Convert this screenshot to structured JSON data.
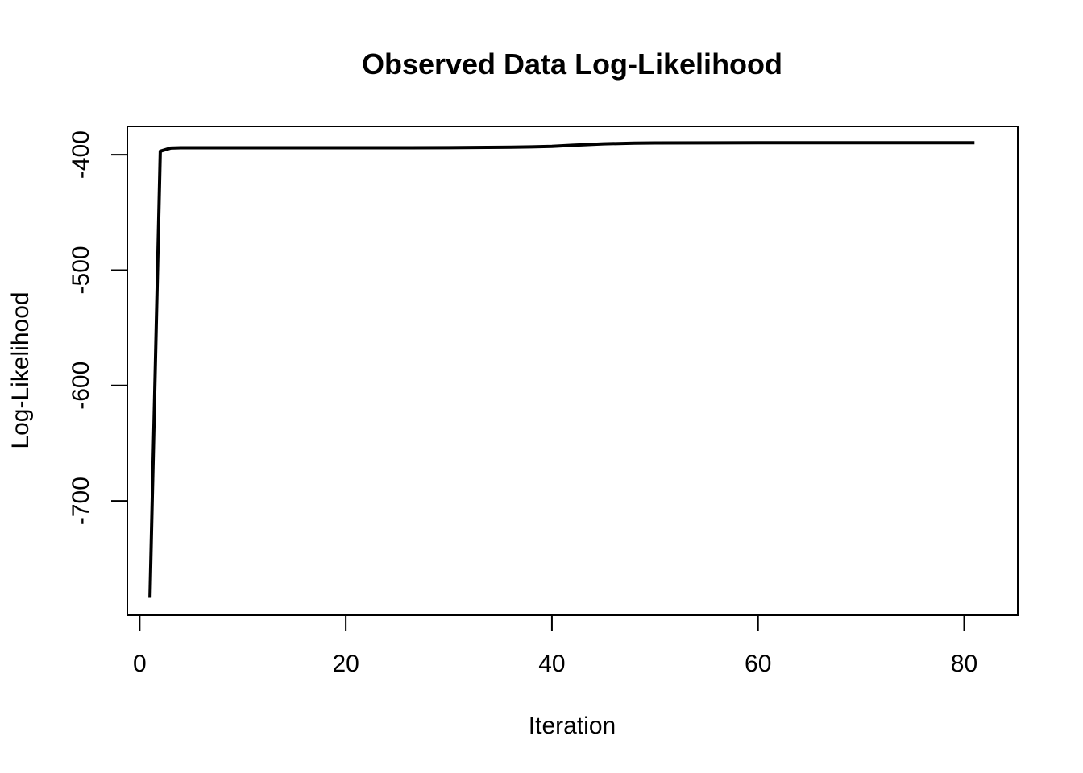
{
  "chart_data": {
    "type": "line",
    "title": "Observed Data Log-Likelihood",
    "xlabel": "Iteration",
    "ylabel": "Log-Likelihood",
    "xlim": [
      -1.2,
      85.2
    ],
    "ylim": [
      -799,
      -375.5
    ],
    "xticks": [
      0,
      20,
      40,
      60,
      80
    ],
    "yticks": [
      -400,
      -500,
      -600,
      -700
    ],
    "grid": false,
    "series": [
      {
        "color": "#000000",
        "points": [
          [
            1,
            -784
          ],
          [
            2,
            -397
          ],
          [
            3,
            -394.3
          ],
          [
            4,
            -394
          ],
          [
            5,
            -394
          ],
          [
            10,
            -394
          ],
          [
            20,
            -394
          ],
          [
            30,
            -393.9
          ],
          [
            35,
            -393.6
          ],
          [
            38,
            -393.2
          ],
          [
            40,
            -392.7
          ],
          [
            42,
            -391.8
          ],
          [
            45,
            -390.6
          ],
          [
            48,
            -390
          ],
          [
            50,
            -389.8
          ],
          [
            60,
            -389.6
          ],
          [
            70,
            -389.6
          ],
          [
            81,
            -389.6
          ]
        ]
      }
    ]
  }
}
